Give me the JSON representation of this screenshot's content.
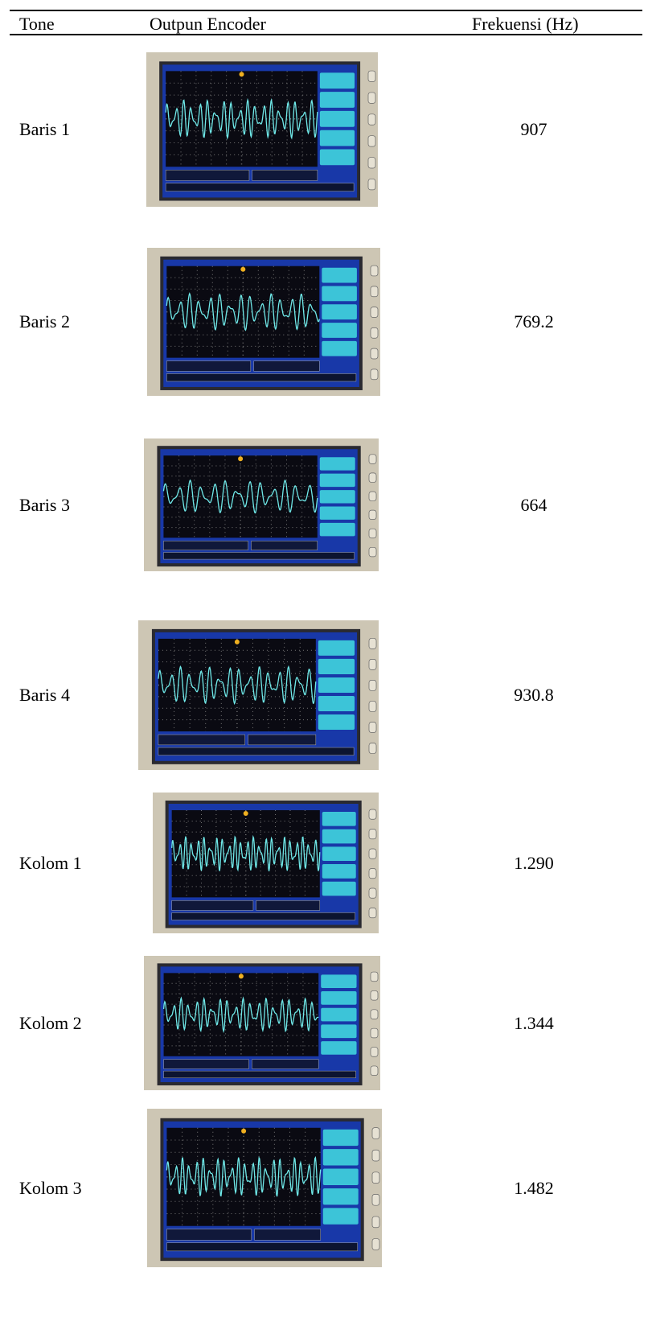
{
  "header": {
    "tone": "Tone",
    "output": "Outpun Encoder",
    "frequency": "Frekuensi (Hz)"
  },
  "rows": [
    {
      "tone": "Baris 1",
      "frequency": "907"
    },
    {
      "tone": "Baris 2",
      "frequency": "769.2"
    },
    {
      "tone": "Baris 3",
      "frequency": "664"
    },
    {
      "tone": "Baris 4",
      "frequency": "930.8"
    },
    {
      "tone": "Kolom 1",
      "frequency": "1.290"
    },
    {
      "tone": "Kolom 2",
      "frequency": "1.344"
    },
    {
      "tone": "Kolom 3",
      "frequency": "1.482"
    }
  ]
}
